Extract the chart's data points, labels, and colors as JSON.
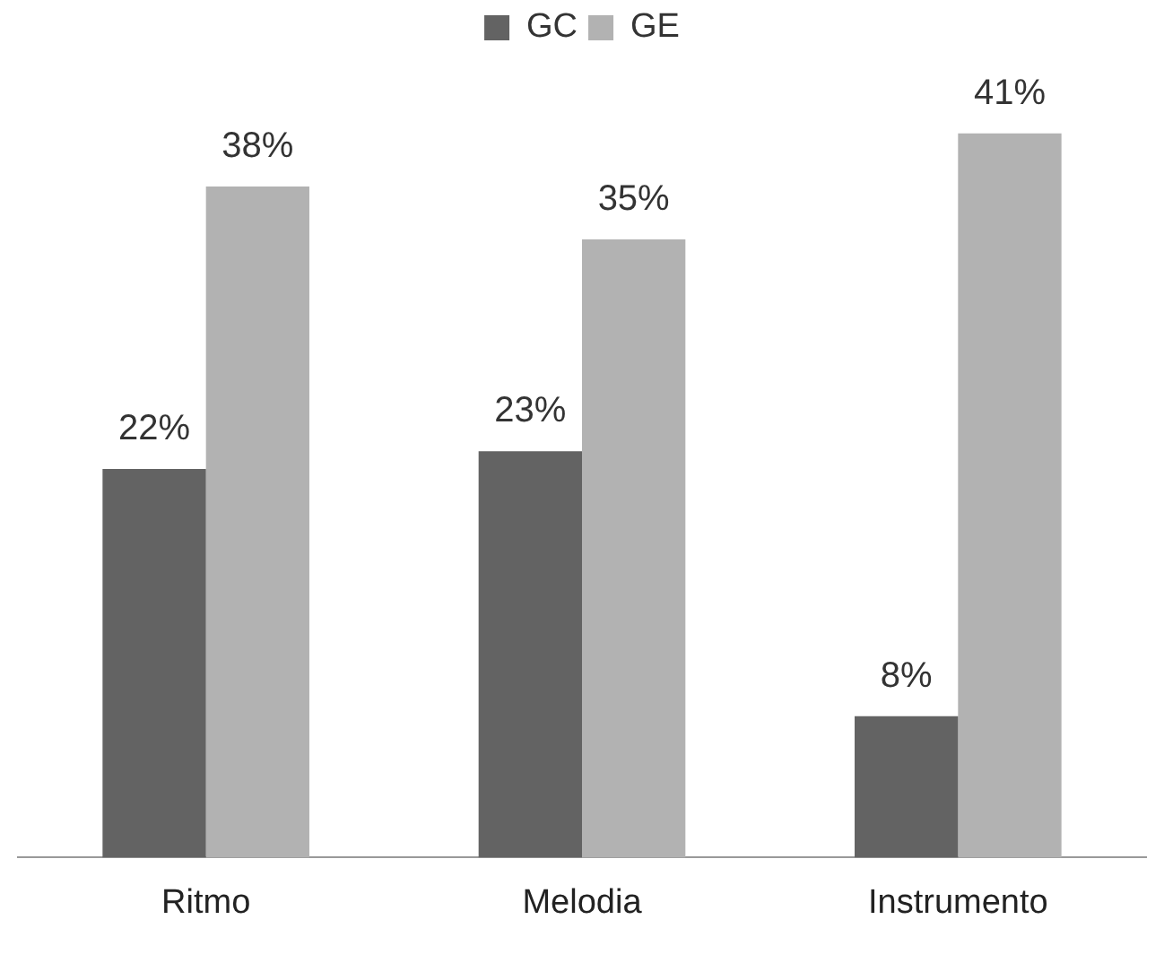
{
  "chart_data": {
    "type": "bar",
    "categories": [
      "Ritmo",
      "Melodia",
      "Instrumento"
    ],
    "series": [
      {
        "name": "GC",
        "color": "#636363",
        "values": [
          22,
          23,
          8
        ],
        "value_labels": [
          "22%",
          "23%",
          "8%"
        ]
      },
      {
        "name": "GE",
        "color": "#b2b2b2",
        "values": [
          38,
          35,
          41
        ],
        "value_labels": [
          "38%",
          "35%",
          "41%"
        ]
      }
    ],
    "tick_labels": "x",
    "grid": false,
    "legend": "top"
  }
}
